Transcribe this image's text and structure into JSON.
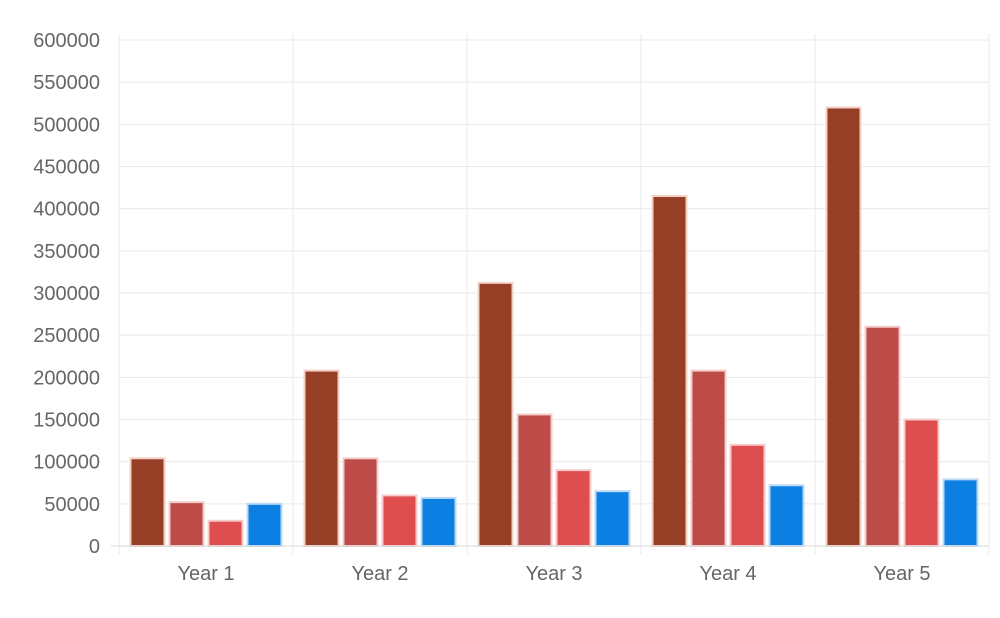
{
  "chart_data": {
    "type": "bar",
    "title": "",
    "xlabel": "",
    "ylabel": "",
    "categories": [
      "Year 1",
      "Year 2",
      "Year 3",
      "Year 4",
      "Year 5"
    ],
    "ylim": [
      0,
      600000
    ],
    "yticks": [
      0,
      50000,
      100000,
      150000,
      200000,
      250000,
      300000,
      350000,
      400000,
      450000,
      500000,
      550000,
      600000
    ],
    "grid": true,
    "legend": "none",
    "series": [
      {
        "color": "#963e26",
        "border": "#f3d1c6",
        "values": [
          104000,
          208000,
          312000,
          415000,
          520000
        ]
      },
      {
        "color": "#bd4b47",
        "border": "#f4cdcb",
        "values": [
          52000,
          104000,
          156000,
          208000,
          260000
        ]
      },
      {
        "color": "#de4e4f",
        "border": "#f7cccd",
        "values": [
          30000,
          60000,
          90000,
          120000,
          150000
        ]
      },
      {
        "color": "#0c7fe3",
        "border": "#bcdaf8",
        "values": [
          50000,
          57000,
          65000,
          72000,
          79000
        ]
      }
    ]
  }
}
